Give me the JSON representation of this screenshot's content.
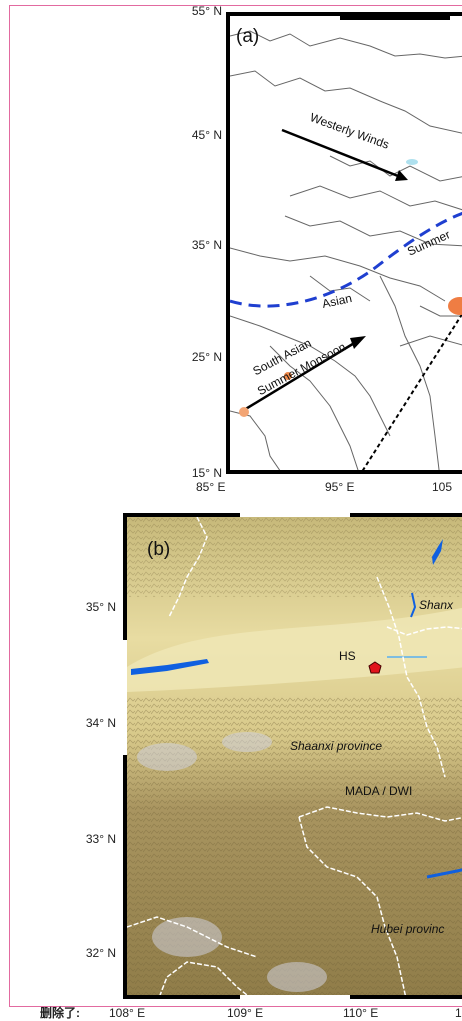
{
  "panel_a": {
    "label": "(a)",
    "y_ticks": [
      "55° N",
      "45° N",
      "35° N",
      "25° N",
      "15° N"
    ],
    "x_ticks": [
      "85° E",
      "95° E",
      "105"
    ],
    "annotations": {
      "westerly": "Westerly Winds",
      "summer": "Summer",
      "asian": "Asian",
      "south_asian": "South Asian",
      "summer_monsoon": "Summer Monsoon"
    },
    "colors": {
      "monsoon_line": "#1f3fd0",
      "arrow": "#000000",
      "site_marker": "#f08a4b",
      "border": "#555555"
    }
  },
  "panel_b": {
    "label": "(b)",
    "y_ticks": [
      "35° N",
      "34° N",
      "33° N",
      "32° N"
    ],
    "x_ticks": [
      "108° E",
      "109° E",
      "110° E",
      "1"
    ],
    "site": "HS",
    "places": {
      "shanxi": "Shanx",
      "shaanxi": "Shaanxi province",
      "mada": "MADA / DWI",
      "hubei": "Hubei provinc"
    },
    "colors": {
      "terrain_low": "#e8dca2",
      "terrain_high": "#8f7c48",
      "river": "#1060e0",
      "site_marker": "#e1141c",
      "border": "#ffffff"
    }
  },
  "footnote": "删除了:"
}
